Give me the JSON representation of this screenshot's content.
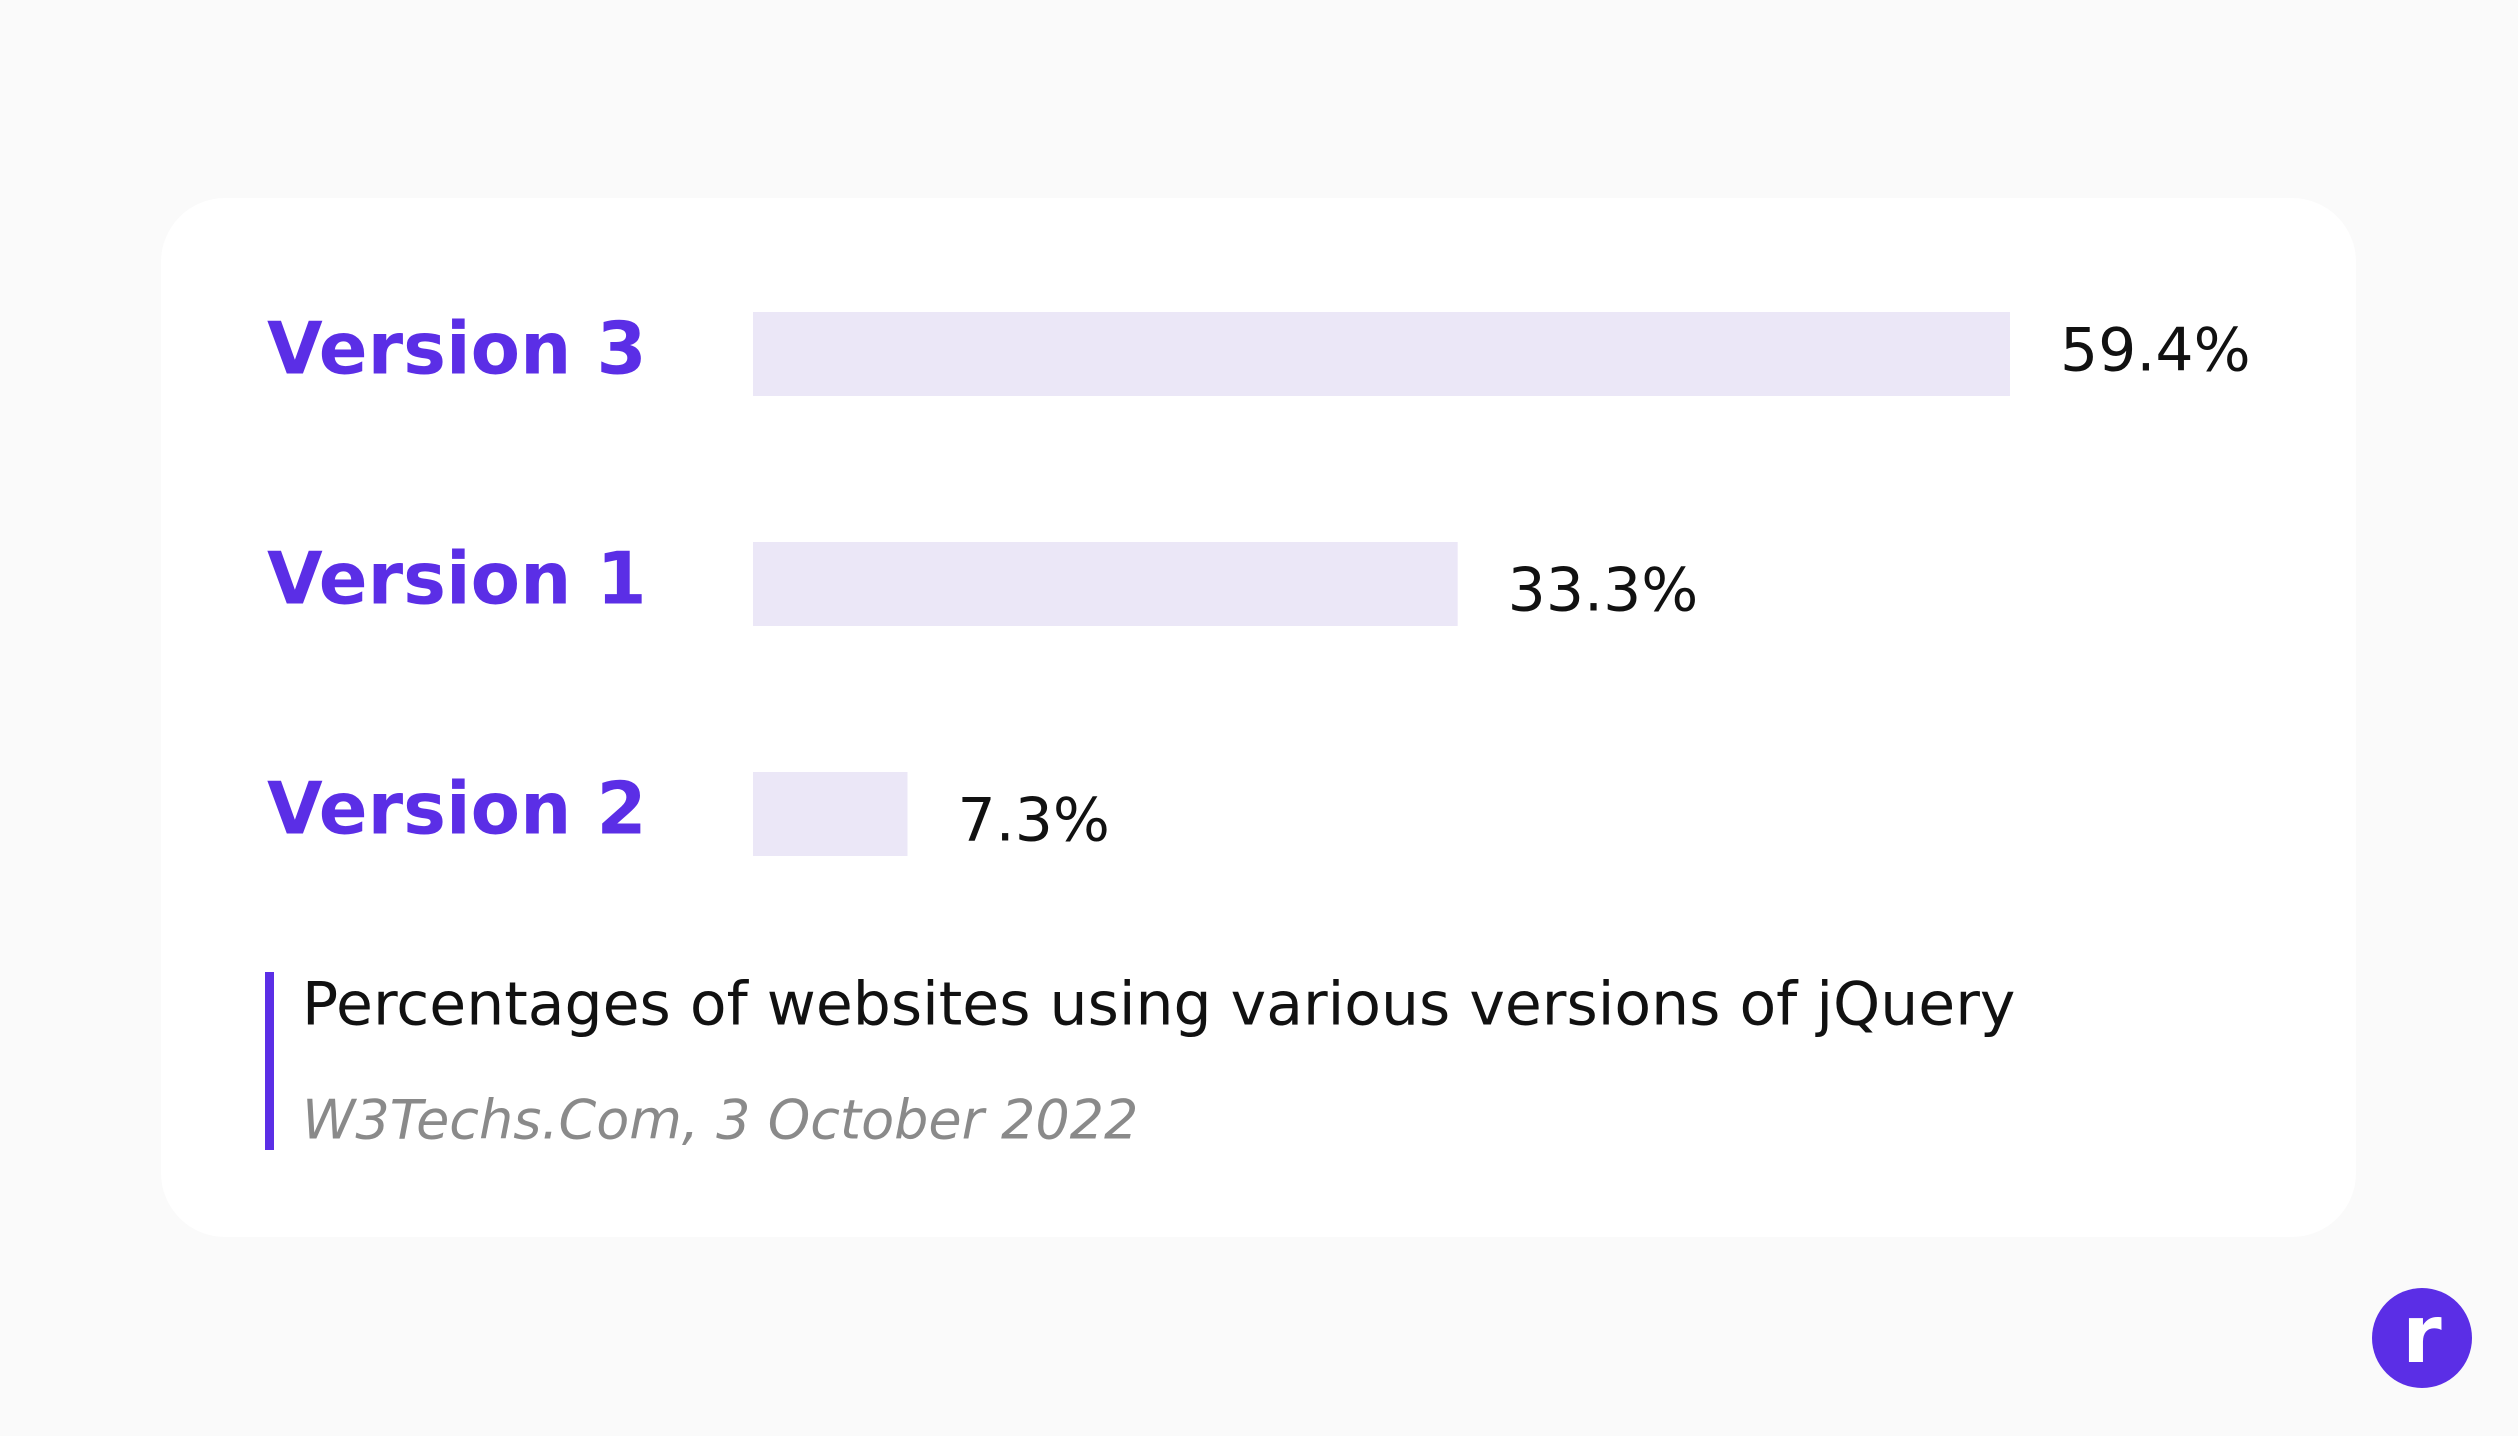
{
  "chart_data": {
    "type": "bar",
    "orientation": "horizontal",
    "categories": [
      "Version 3",
      "Version 1",
      "Version 2"
    ],
    "values": [
      59.4,
      33.3,
      7.3
    ],
    "value_labels": [
      "59.4%",
      "33.3%",
      "7.3%"
    ],
    "color": "#ebe7f7",
    "title": "Percentages of websites using various versions of jQuery",
    "source": "W3Techs.Com, 3 October 2022"
  },
  "logo": "r"
}
